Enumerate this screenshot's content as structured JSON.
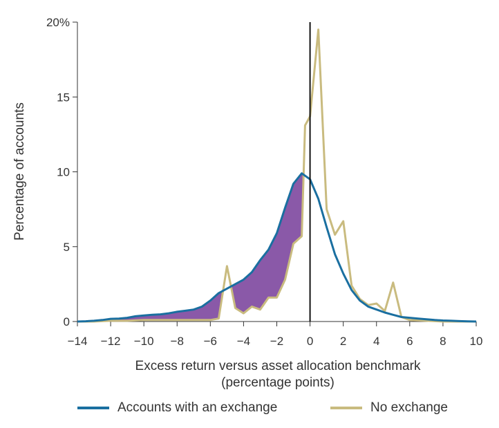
{
  "colors": {
    "exchange": "#1a6fa0",
    "no_exchange": "#c9bb7f",
    "fill": "#8a59a8",
    "axis": "#333333",
    "zero_line": "#111111"
  },
  "chart_data": {
    "type": "line",
    "xlabel_line1": "Excess return versus asset allocation benchmark",
    "xlabel_line2": "(percentage points)",
    "ylabel": "Percentage of accounts",
    "xlim": [
      -14,
      10
    ],
    "ylim": [
      0,
      20
    ],
    "x_ticks": [
      -14,
      -12,
      -10,
      -8,
      -6,
      -4,
      -2,
      0,
      2,
      4,
      6,
      8,
      10
    ],
    "x_tick_labels": [
      "−14",
      "−12",
      "−10",
      "−8",
      "−6",
      "−4",
      "−2",
      "0",
      "2",
      "4",
      "6",
      "8",
      "10"
    ],
    "y_ticks": [
      0,
      5,
      10,
      15,
      20
    ],
    "y_tick_labels": [
      "0",
      "5",
      "10",
      "15",
      "20%"
    ],
    "shaded_region": "between series where Accounts with an exchange exceeds No exchange (left of 0)",
    "series": [
      {
        "name": "Accounts with an exchange",
        "color_key": "exchange",
        "points": [
          [
            -14,
            0
          ],
          [
            -13.5,
            0.02
          ],
          [
            -13,
            0.05
          ],
          [
            -12.5,
            0.1
          ],
          [
            -12,
            0.18
          ],
          [
            -11.5,
            0.2
          ],
          [
            -11,
            0.25
          ],
          [
            -10.5,
            0.35
          ],
          [
            -10,
            0.4
          ],
          [
            -9.5,
            0.45
          ],
          [
            -9,
            0.48
          ],
          [
            -8.5,
            0.55
          ],
          [
            -8,
            0.65
          ],
          [
            -7.5,
            0.72
          ],
          [
            -7,
            0.8
          ],
          [
            -6.5,
            1.0
          ],
          [
            -6,
            1.4
          ],
          [
            -5.5,
            1.9
          ],
          [
            -5,
            2.2
          ],
          [
            -4.5,
            2.5
          ],
          [
            -4,
            2.8
          ],
          [
            -3.5,
            3.3
          ],
          [
            -3,
            4.1
          ],
          [
            -2.5,
            4.8
          ],
          [
            -2,
            5.9
          ],
          [
            -1.5,
            7.6
          ],
          [
            -1,
            9.2
          ],
          [
            -0.5,
            9.9
          ],
          [
            0,
            9.5
          ],
          [
            0.5,
            8.2
          ],
          [
            1,
            6.3
          ],
          [
            1.5,
            4.5
          ],
          [
            2,
            3.2
          ],
          [
            2.5,
            2.1
          ],
          [
            3,
            1.4
          ],
          [
            3.5,
            1.0
          ],
          [
            4,
            0.8
          ],
          [
            4.5,
            0.6
          ],
          [
            5,
            0.45
          ],
          [
            5.5,
            0.3
          ],
          [
            6,
            0.25
          ],
          [
            6.5,
            0.2
          ],
          [
            7,
            0.15
          ],
          [
            7.5,
            0.1
          ],
          [
            8,
            0.07
          ],
          [
            8.5,
            0.05
          ],
          [
            9,
            0.03
          ],
          [
            9.5,
            0.01
          ],
          [
            10,
            0
          ]
        ]
      },
      {
        "name": "No exchange",
        "color_key": "no_exchange",
        "points": [
          [
            -14,
            0
          ],
          [
            -13,
            0
          ],
          [
            -12,
            0.05
          ],
          [
            -11,
            0.05
          ],
          [
            -10,
            0.1
          ],
          [
            -9,
            0.1
          ],
          [
            -8,
            0.1
          ],
          [
            -7,
            0.1
          ],
          [
            -6,
            0.1
          ],
          [
            -5.5,
            0.2
          ],
          [
            -5,
            3.7
          ],
          [
            -4.5,
            0.9
          ],
          [
            -4,
            0.55
          ],
          [
            -3.5,
            1.0
          ],
          [
            -3,
            0.8
          ],
          [
            -2.5,
            1.6
          ],
          [
            -2,
            1.6
          ],
          [
            -1.5,
            2.8
          ],
          [
            -1,
            5.2
          ],
          [
            -0.5,
            5.7
          ],
          [
            -0.3,
            13.1
          ],
          [
            0,
            13.7
          ],
          [
            0.5,
            19.5
          ],
          [
            1,
            7.5
          ],
          [
            1.5,
            5.8
          ],
          [
            2,
            6.7
          ],
          [
            2.5,
            2.4
          ],
          [
            3,
            1.5
          ],
          [
            3.5,
            1.1
          ],
          [
            4,
            1.2
          ],
          [
            4.5,
            0.7
          ],
          [
            5,
            2.6
          ],
          [
            5.5,
            0.3
          ],
          [
            6,
            0.1
          ],
          [
            7,
            0.05
          ],
          [
            8,
            0
          ],
          [
            9,
            0
          ],
          [
            10,
            0
          ]
        ]
      }
    ]
  },
  "legend": {
    "item1": "Accounts with an exchange",
    "item2": "No exchange"
  }
}
